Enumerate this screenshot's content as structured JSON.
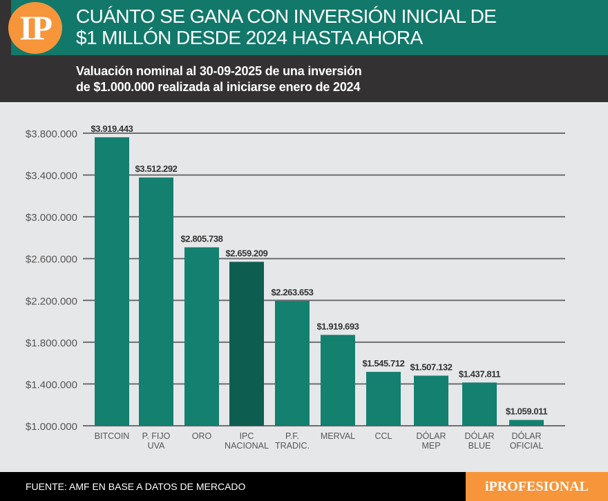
{
  "header": {
    "logo_text": "IP",
    "title_line1": "CUÁNTO SE GANA CON INVERSIÓN INICIAL DE",
    "title_line2": "$1 MILLÓN DESDE 2024 HASTA AHORA",
    "subtitle_line1": "Valuación nominal al 30-09-2025 de una inversión",
    "subtitle_line2": "de $1.000.000 realizada al iniciarse enero de 2024"
  },
  "footer": {
    "source": "FUENTE: AMF EN BASE A DATOS DE MERCADO",
    "brand": "iPROFESIONAL"
  },
  "colors": {
    "header_bg": "#11786a",
    "subheader_bg": "#333132",
    "bar": "#138070",
    "bar_highlight": "#0d5e50",
    "accent_orange": "#f7953a",
    "background": "#e6e7e9",
    "gridline": "#6d6e70"
  },
  "chart_data": {
    "type": "bar",
    "title": "Valuación nominal al 30-09-2025 de una inversión de $1.000.000 realizada al iniciarse enero de 2024",
    "xlabel": "",
    "ylabel": "",
    "ylim": [
      1000000,
      3800000
    ],
    "grid": true,
    "legend": "none",
    "yticks": [
      1000000,
      1400000,
      1800000,
      2200000,
      2600000,
      3000000,
      3400000,
      3800000
    ],
    "ytick_labels": [
      "$1.000.000",
      "$1.400.000",
      "$1.800.000",
      "$2.200.000",
      "$2.600.000",
      "$3.000.000",
      "$3.400.000",
      "$3.800.000"
    ],
    "categories": [
      [
        "BITCOIN"
      ],
      [
        "P. FIJO",
        "UVA"
      ],
      [
        "ORO"
      ],
      [
        "IPC",
        "NACIONAL"
      ],
      [
        "P.F.",
        "TRADIC."
      ],
      [
        "MERVAL"
      ],
      [
        "CCL"
      ],
      [
        "DÓLAR",
        "MEP"
      ],
      [
        "DÓLAR",
        "BLUE"
      ],
      [
        "DÓLAR",
        "OFICIAL"
      ]
    ],
    "values": [
      3919443,
      3512292,
      2805738,
      2659209,
      2263653,
      1919693,
      1545712,
      1507132,
      1437811,
      1059011
    ],
    "data_labels": [
      "$3.919.443",
      "$3.512.292",
      "$2.805.738",
      "$2.659.209",
      "$2.263.653",
      "$1.919.693",
      "$1.545.712",
      "$1.507.132",
      "$1.437.811",
      "$1.059.011"
    ],
    "highlighted": [
      "IPC NACIONAL"
    ]
  }
}
